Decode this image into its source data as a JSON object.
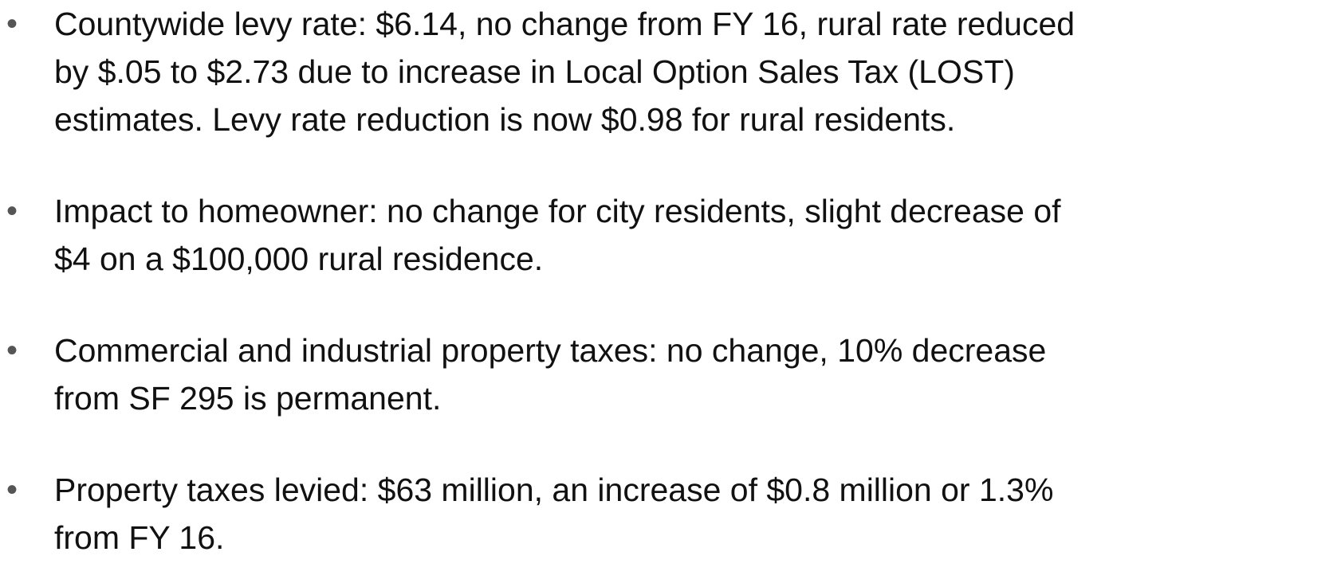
{
  "bullets": [
    {
      "lines": [
        "Countywide levy rate:  $6.14, no change from FY 16, rural rate reduced",
        "by $.05 to $2.73 due to increase in Local Option Sales Tax (LOST)",
        "estimates. Levy rate reduction is now $0.98 for rural residents."
      ]
    },
    {
      "lines": [
        "Impact to homeowner:  no change for city residents, slight decrease of",
        "$4 on a $100,000 rural residence."
      ]
    },
    {
      "lines": [
        "Commercial and industrial property taxes:  no change, 10% decrease",
        "from SF 295 is permanent."
      ]
    },
    {
      "lines": [
        "Property taxes levied:  $63 million, an increase of $0.8 million or 1.3%",
        "from FY 16."
      ]
    }
  ]
}
